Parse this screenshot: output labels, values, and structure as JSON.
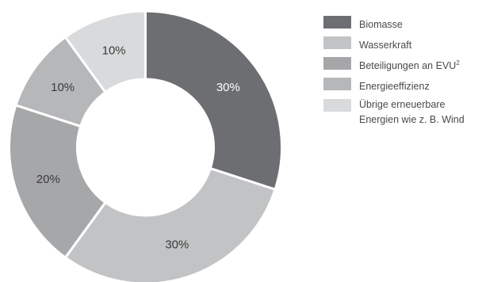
{
  "chart_data": {
    "type": "pie",
    "donut": true,
    "categories": [
      "Biomasse",
      "Wasserkraft",
      "Beteiligungen an EVU",
      "Energieeffizienz",
      "Übrige erneuerbare Energien wie z. B. Wind"
    ],
    "values": [
      30,
      30,
      20,
      10,
      10
    ],
    "value_labels": [
      "30%",
      "30%",
      "20%",
      "10%",
      "10%"
    ],
    "colors": [
      "#6d6e71",
      "#c2c3c5",
      "#a6a7a9",
      "#b6b7b9",
      "#d9dadb"
    ],
    "label_colors": [
      "#ffffff",
      "#3a3a3a",
      "#3a3a3a",
      "#3a3a3a",
      "#3a3a3a"
    ],
    "legend": {
      "placement": "right",
      "items": [
        {
          "label": "Biomasse",
          "sup": ""
        },
        {
          "label": "Wasserkraft",
          "sup": ""
        },
        {
          "label": "Beteiligungen an EVU",
          "sup": "2"
        },
        {
          "label": "Energieeffizienz",
          "sup": ""
        },
        {
          "label": "Übrige erneuerbare\nEnergien wie z. B. Wind",
          "sup": ""
        }
      ]
    }
  }
}
